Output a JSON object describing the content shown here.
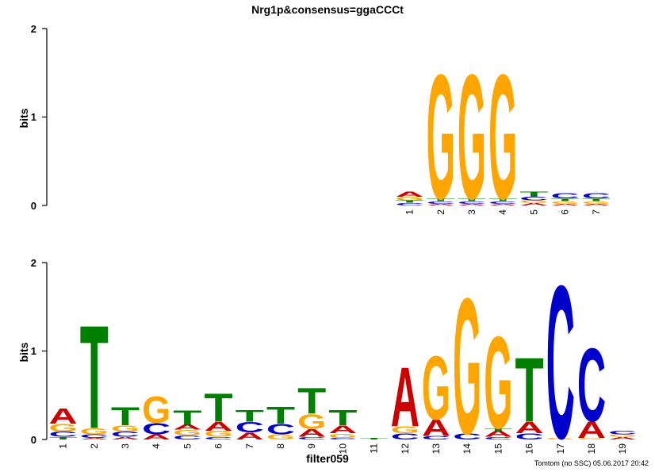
{
  "title": "Nrg1p&consensus=ggaCCCt",
  "xlabel": "filter059",
  "footer": "Tomtom (no SSC) 05.06.2017 20:42",
  "colors": {
    "A": "#cc0000",
    "C": "#0000cc",
    "G": "#ffa500",
    "T": "#008000"
  },
  "chart_data": [
    {
      "type": "sequence-logo",
      "name": "query",
      "ylabel": "bits",
      "ylim": [
        0,
        2
      ],
      "yticks": [
        "0",
        "1",
        "2"
      ],
      "columns": [
        {
          "label": "1",
          "stack": [
            [
              "C",
              0.03
            ],
            [
              "T",
              0.03
            ],
            [
              "G",
              0.04
            ],
            [
              "A",
              0.06
            ]
          ]
        },
        {
          "label": "2",
          "stack": [
            [
              "A",
              0.02
            ],
            [
              "C",
              0.03
            ],
            [
              "T",
              0.03
            ],
            [
              "G",
              1.45
            ]
          ]
        },
        {
          "label": "3",
          "stack": [
            [
              "A",
              0.02
            ],
            [
              "C",
              0.03
            ],
            [
              "T",
              0.03
            ],
            [
              "G",
              1.45
            ]
          ]
        },
        {
          "label": "4",
          "stack": [
            [
              "A",
              0.02
            ],
            [
              "C",
              0.03
            ],
            [
              "T",
              0.03
            ],
            [
              "G",
              1.45
            ]
          ]
        },
        {
          "label": "5",
          "stack": [
            [
              "A",
              0.03
            ],
            [
              "G",
              0.03
            ],
            [
              "C",
              0.04
            ],
            [
              "T",
              0.06
            ]
          ]
        },
        {
          "label": "6",
          "stack": [
            [
              "A",
              0.02
            ],
            [
              "G",
              0.03
            ],
            [
              "T",
              0.03
            ],
            [
              "C",
              0.06
            ]
          ]
        },
        {
          "label": "7",
          "stack": [
            [
              "A",
              0.02
            ],
            [
              "G",
              0.03
            ],
            [
              "T",
              0.03
            ],
            [
              "C",
              0.06
            ]
          ]
        }
      ]
    },
    {
      "type": "sequence-logo",
      "name": "target",
      "ylabel": "bits",
      "ylim": [
        0,
        2
      ],
      "yticks": [
        "0",
        "1",
        "2"
      ],
      "columns": [
        {
          "label": "1",
          "stack": [
            [
              "T",
              0.03
            ],
            [
              "C",
              0.06
            ],
            [
              "G",
              0.09
            ],
            [
              "A",
              0.18
            ]
          ]
        },
        {
          "label": "2",
          "stack": [
            [
              "A",
              0.02
            ],
            [
              "C",
              0.04
            ],
            [
              "G",
              0.07
            ],
            [
              "T",
              1.2
            ]
          ]
        },
        {
          "label": "3",
          "stack": [
            [
              "A",
              0.03
            ],
            [
              "C",
              0.06
            ],
            [
              "G",
              0.07
            ],
            [
              "T",
              0.21
            ]
          ]
        },
        {
          "label": "4",
          "stack": [
            [
              "A",
              0.06
            ],
            [
              "C",
              0.13
            ],
            [
              "G",
              0.31
            ]
          ]
        },
        {
          "label": "5",
          "stack": [
            [
              "C",
              0.05
            ],
            [
              "G",
              0.06
            ],
            [
              "A",
              0.06
            ],
            [
              "T",
              0.16
            ]
          ]
        },
        {
          "label": "6",
          "stack": [
            [
              "C",
              0.03
            ],
            [
              "G",
              0.07
            ],
            [
              "A",
              0.1
            ],
            [
              "T",
              0.33
            ]
          ]
        },
        {
          "label": "7",
          "stack": [
            [
              "A",
              0.08
            ],
            [
              "C",
              0.12
            ],
            [
              "T",
              0.14
            ]
          ]
        },
        {
          "label": "8",
          "stack": [
            [
              "G",
              0.06
            ],
            [
              "C",
              0.12
            ],
            [
              "T",
              0.2
            ]
          ]
        },
        {
          "label": "9",
          "stack": [
            [
              "C",
              0.03
            ],
            [
              "A",
              0.09
            ],
            [
              "G",
              0.17
            ],
            [
              "T",
              0.3
            ]
          ]
        },
        {
          "label": "10",
          "stack": [
            [
              "C",
              0.02
            ],
            [
              "G",
              0.05
            ],
            [
              "A",
              0.09
            ],
            [
              "T",
              0.18
            ]
          ]
        },
        {
          "label": "11",
          "stack": [
            [
              "T",
              0.02
            ]
          ]
        },
        {
          "label": "12",
          "stack": [
            [
              "C",
              0.07
            ],
            [
              "G",
              0.08
            ],
            [
              "A",
              0.69
            ]
          ]
        },
        {
          "label": "13",
          "stack": [
            [
              "C",
              0.04
            ],
            [
              "A",
              0.19
            ],
            [
              "G",
              0.74
            ]
          ]
        },
        {
          "label": "14",
          "stack": [
            [
              "C",
              0.07
            ],
            [
              "G",
              1.58
            ]
          ]
        },
        {
          "label": "15",
          "stack": [
            [
              "C",
              0.03
            ],
            [
              "A",
              0.07
            ],
            [
              "T",
              0.03
            ],
            [
              "G",
              1.07
            ]
          ]
        },
        {
          "label": "16",
          "stack": [
            [
              "C",
              0.07
            ],
            [
              "A",
              0.13
            ],
            [
              "T",
              0.75
            ]
          ]
        },
        {
          "label": "17",
          "stack": [
            [
              "G",
              0.02
            ],
            [
              "C",
              1.78
            ]
          ]
        },
        {
          "label": "18",
          "stack": [
            [
              "G",
              0.02
            ],
            [
              "A",
              0.19
            ],
            [
              "C",
              0.85
            ]
          ]
        },
        {
          "label": "19",
          "stack": [
            [
              "A",
              0.03
            ],
            [
              "G",
              0.03
            ],
            [
              "C",
              0.04
            ]
          ]
        }
      ]
    }
  ]
}
